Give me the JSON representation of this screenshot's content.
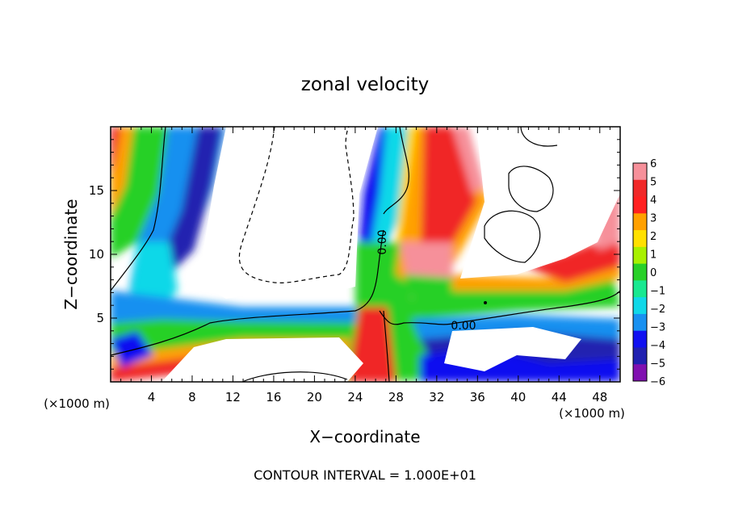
{
  "chart_data": {
    "type": "heatmap",
    "title": "zonal velocity",
    "xlabel": "X−coordinate",
    "ylabel": "Z−coordinate",
    "x_unit": "(×1000 m)",
    "x_unit_right": "(×1000 m)",
    "footer": "CONTOUR INTERVAL = 1.000E+01",
    "xlim": [
      0,
      50
    ],
    "ylim": [
      0,
      20
    ],
    "x_ticks": [
      4,
      8,
      12,
      16,
      20,
      24,
      28,
      32,
      36,
      40,
      44,
      48
    ],
    "y_ticks": [
      5,
      10,
      15
    ],
    "colorbar": {
      "levels": [
        6,
        5,
        4,
        3,
        2,
        1,
        0,
        -1,
        -2,
        -3,
        -4,
        -5,
        -6
      ],
      "labels": [
        "6",
        "5",
        "4",
        "3",
        "2",
        "1",
        "0",
        "−1",
        "−2",
        "−3",
        "−4",
        "−5",
        "−6"
      ],
      "colors": [
        "#f6909a",
        "#f02828",
        "#ff2020",
        "#ffa000",
        "#ffe000",
        "#a8f000",
        "#28d028",
        "#18e890",
        "#10d8e8",
        "#1890f0",
        "#1010f0",
        "#2020b0",
        "#8010b0"
      ]
    },
    "contour_labels": [
      {
        "text": "0.00",
        "x": 27.0,
        "z": 11.0,
        "rotate": -90
      },
      {
        "text": "0.00",
        "x": 34.8,
        "z": 4.5,
        "rotate": 0
      }
    ]
  }
}
